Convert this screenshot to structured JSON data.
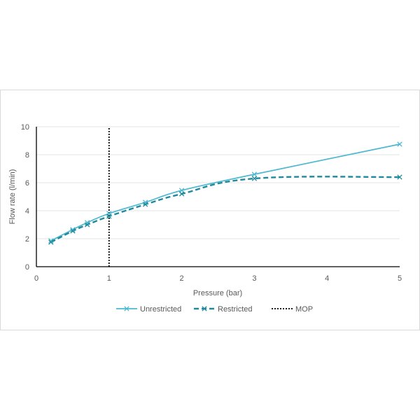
{
  "chart_data": {
    "type": "line",
    "xlabel": "Pressure (bar)",
    "ylabel": "Flow rate (l/min)",
    "xlim": [
      0,
      5
    ],
    "ylim": [
      0,
      10
    ],
    "xticks": [
      0,
      1,
      2,
      3,
      4,
      5
    ],
    "yticks": [
      0,
      2,
      4,
      6,
      8,
      10
    ],
    "grid": "horizontal",
    "legend_position": "bottom",
    "series": [
      {
        "name": "Unrestricted",
        "style": "solid",
        "marker": "x",
        "color": "#4bb8cf",
        "x": [
          0.2,
          0.5,
          0.7,
          1.0,
          1.5,
          2.0,
          3.0,
          5.0
        ],
        "y": [
          1.85,
          2.65,
          3.15,
          3.8,
          4.6,
          5.45,
          6.6,
          8.75
        ]
      },
      {
        "name": "Restricted",
        "style": "dashed",
        "marker": "x",
        "color": "#1f8a9c",
        "x": [
          0.2,
          0.5,
          0.7,
          1.0,
          1.5,
          2.0,
          3.0,
          5.0
        ],
        "y": [
          1.75,
          2.55,
          3.0,
          3.6,
          4.45,
          5.2,
          6.3,
          6.4
        ]
      },
      {
        "name": "MOP",
        "style": "dotted",
        "color": "#000000",
        "x": [
          1.0,
          1.0
        ],
        "y": [
          0,
          10
        ]
      }
    ]
  }
}
